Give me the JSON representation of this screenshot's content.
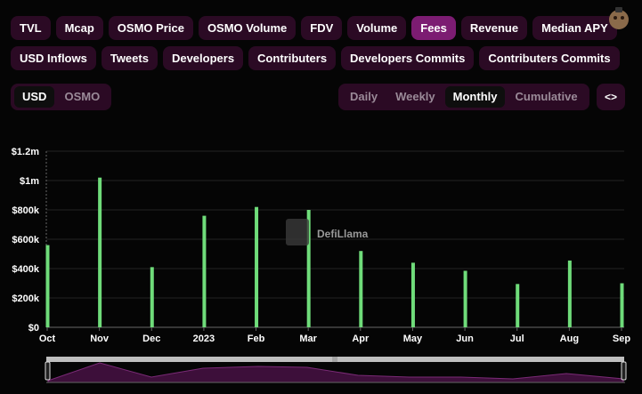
{
  "metric_tabs_row1": [
    "TVL",
    "Mcap",
    "OSMO Price",
    "OSMO Volume",
    "FDV",
    "Volume",
    "Fees",
    "Revenue",
    "Median APY"
  ],
  "metric_tabs_row2": [
    "USD Inflows",
    "Tweets",
    "Developers",
    "Contributers",
    "Developers Commits",
    "Contributers Commits"
  ],
  "active_metric": "Fees",
  "denomination": {
    "options": [
      "USD",
      "OSMO"
    ],
    "selected": "USD"
  },
  "period": {
    "options": [
      "Daily",
      "Weekly",
      "Monthly",
      "Cumulative"
    ],
    "selected": "Monthly"
  },
  "embed_label": "<>",
  "watermark": "DefiLlama",
  "colors": {
    "bar": "#6fdc7a",
    "accent": "#7c1c72",
    "chip_bg": "#2b0a24",
    "brush": "#5a1a57"
  },
  "chart_data": {
    "type": "bar",
    "categories": [
      "Oct",
      "Nov",
      "Dec",
      "2023",
      "Feb",
      "Mar",
      "Apr",
      "May",
      "Jun",
      "Jul",
      "Aug",
      "Sep"
    ],
    "bold_categories": [
      "2023"
    ],
    "values": [
      560000,
      1020000,
      410000,
      760000,
      820000,
      800000,
      520000,
      440000,
      385000,
      295000,
      455000,
      300000
    ],
    "yticks": [
      "$0",
      "$200k",
      "$400k",
      "$600k",
      "$800k",
      "$1m",
      "$1.2m"
    ],
    "ylim": [
      0,
      1200000
    ],
    "title": "",
    "xlabel": "",
    "ylabel": ""
  }
}
